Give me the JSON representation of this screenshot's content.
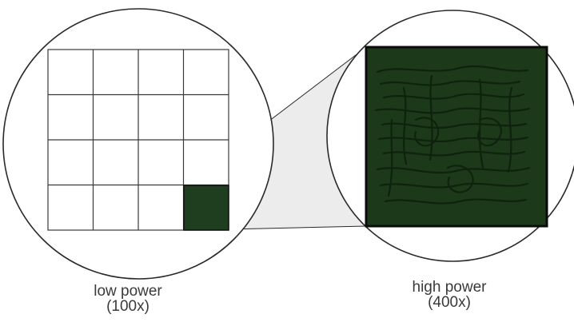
{
  "low_power": {
    "label": "low power",
    "magnification": "(100x)",
    "grid_rows": 4,
    "grid_cols": 4,
    "highlighted_cell": {
      "row": 4,
      "col": 4
    }
  },
  "high_power": {
    "label": "high power",
    "magnification": "(400x)"
  },
  "colors": {
    "outline": "#2a2a2a",
    "grid_line": "#3a3a3a",
    "highlight_fill": "#1f3d1f",
    "specimen_fill": "#1c3a1a",
    "specimen_detail": "#0f220e",
    "zoom_shade": "#ebebeb"
  }
}
